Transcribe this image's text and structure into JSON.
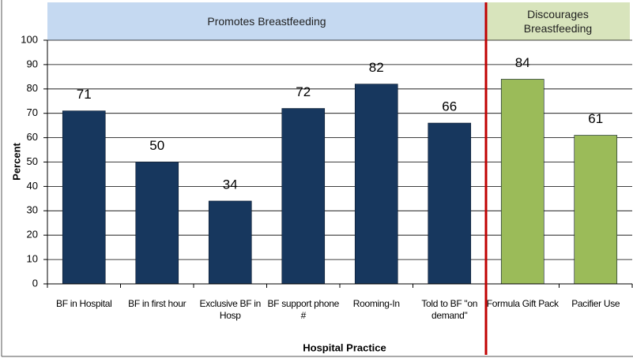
{
  "chart_data": {
    "type": "bar",
    "categories": [
      "BF in Hospital",
      "BF in first hour",
      "Exclusive BF in Hosp",
      "BF support phone #",
      "Rooming-In",
      "Told to BF \"on demand\"",
      "Formula Gift Pack",
      "Pacifier Use"
    ],
    "series": [
      {
        "name": "Promotes Breastfeeding",
        "color": "#17375e",
        "band_color": "#c5d9f1",
        "values": [
          71,
          50,
          34,
          72,
          82,
          66,
          null,
          null
        ]
      },
      {
        "name": "Discourages Breastfeeding",
        "color": "#9bbb59",
        "band_color": "#d8e4bc",
        "values": [
          null,
          null,
          null,
          null,
          null,
          null,
          84,
          61
        ]
      }
    ],
    "divider_color": "#c00000",
    "ylabel": "Percent",
    "xlabel": "Hospital Practice",
    "ylim": [
      0,
      100
    ],
    "yticks": [
      0,
      10,
      20,
      30,
      40,
      50,
      60,
      70,
      80,
      90,
      100
    ],
    "grid": true
  }
}
